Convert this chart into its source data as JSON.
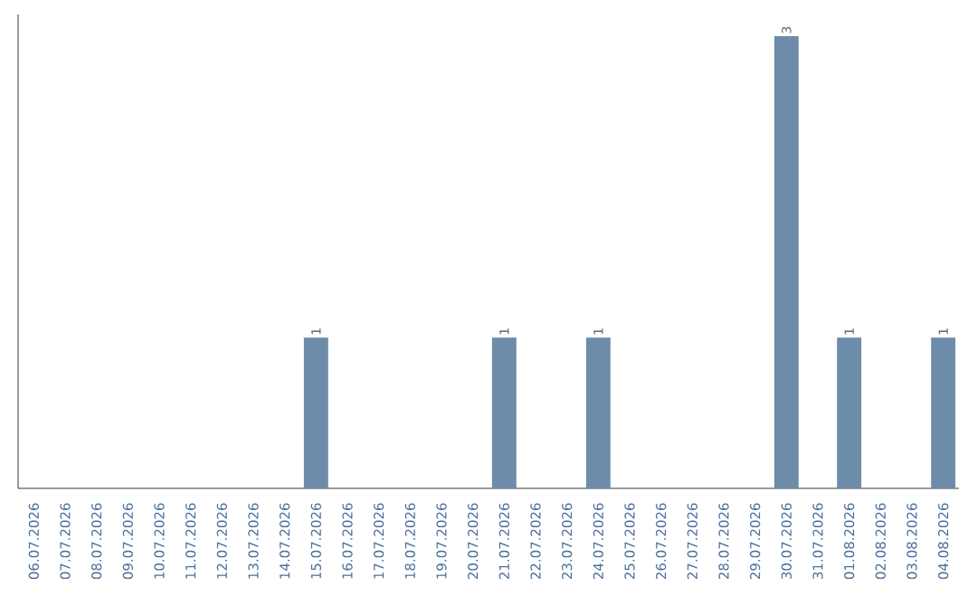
{
  "chart_data": {
    "type": "bar",
    "categories": [
      "06.07.2026",
      "07.07.2026",
      "08.07.2026",
      "09.07.2026",
      "10.07.2026",
      "11.07.2026",
      "12.07.2026",
      "13.07.2026",
      "14.07.2026",
      "15.07.2026",
      "16.07.2026",
      "17.07.2026",
      "18.07.2026",
      "19.07.2026",
      "20.07.2026",
      "21.07.2026",
      "22.07.2026",
      "23.07.2026",
      "24.07.2026",
      "25.07.2026",
      "26.07.2026",
      "27.07.2026",
      "28.07.2026",
      "29.07.2026",
      "30.07.2026",
      "31.07.2026",
      "01.08.2026",
      "02.08.2026",
      "03.08.2026",
      "04.08.2026"
    ],
    "values": [
      0,
      0,
      0,
      0,
      0,
      0,
      0,
      0,
      0,
      1,
      0,
      0,
      0,
      0,
      0,
      1,
      0,
      0,
      1,
      0,
      0,
      0,
      0,
      0,
      3,
      0,
      1,
      0,
      0,
      1
    ],
    "value_labels": [
      null,
      null,
      null,
      null,
      null,
      null,
      null,
      null,
      null,
      "1",
      null,
      null,
      null,
      null,
      null,
      "1",
      null,
      null,
      "1",
      null,
      null,
      null,
      null,
      null,
      "3",
      null,
      "1",
      null,
      null,
      "1"
    ],
    "color": "#6d8caa"
  }
}
